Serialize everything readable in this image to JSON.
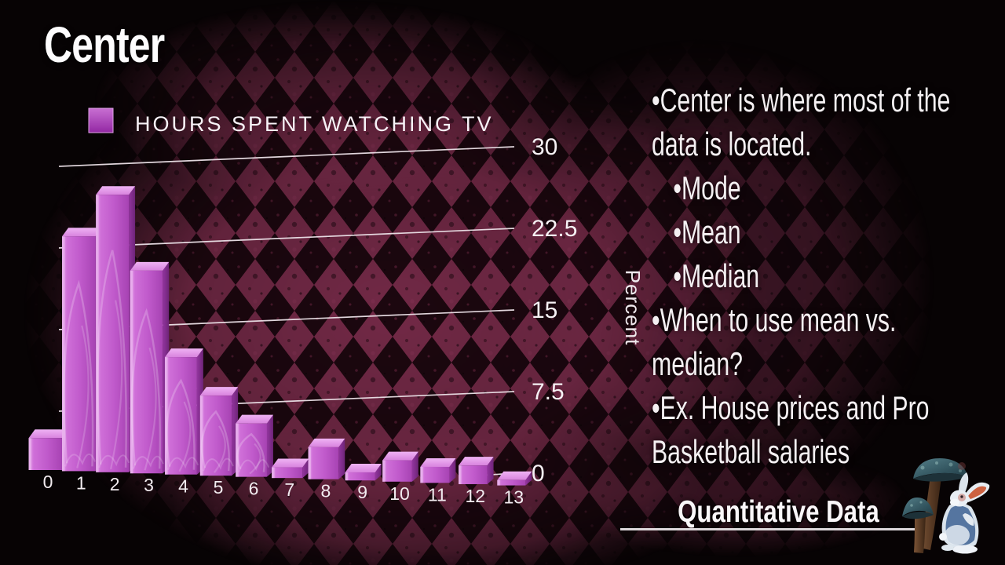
{
  "slide": {
    "title": "Center",
    "footer_label": "Quantitative Data",
    "bullet_char": "•",
    "bullet_lines": [
      {
        "indent": 0,
        "marker": true,
        "text": "Center is where most of the"
      },
      {
        "indent": 0,
        "marker": false,
        "text": "data is located."
      },
      {
        "indent": 1,
        "marker": true,
        "text": "Mode"
      },
      {
        "indent": 1,
        "marker": true,
        "text": "Mean"
      },
      {
        "indent": 1,
        "marker": true,
        "text": "Median"
      },
      {
        "indent": 0,
        "marker": true,
        "text": "When to use mean vs."
      },
      {
        "indent": 0,
        "marker": false,
        "text": "median?"
      },
      {
        "indent": 0,
        "marker": true,
        "text": "Ex. House prices and Pro"
      },
      {
        "indent": 0,
        "marker": false,
        "text": "Basketball salaries"
      }
    ]
  },
  "chart_data": {
    "type": "bar",
    "style": "3d-bars",
    "title": "",
    "legend_label": "HOURS SPENT WATCHING TV",
    "legend_position": "top-left",
    "xlabel": "",
    "ylabel": "Percent",
    "categories": [
      "0",
      "1",
      "2",
      "3",
      "4",
      "5",
      "6",
      "7",
      "8",
      "9",
      "10",
      "11",
      "12",
      "13"
    ],
    "values": [
      3,
      22,
      26,
      19,
      11,
      7.5,
      5,
      1,
      3,
      0.75,
      2,
      1.5,
      1.75,
      0.5
    ],
    "yticks": [
      0,
      7.5,
      15,
      22.5,
      30
    ],
    "ytick_labels": [
      "0",
      "7.5",
      "15",
      "22.5",
      "30"
    ],
    "ylim": [
      0,
      30
    ],
    "grid": true,
    "bar_color": "#c25ccd"
  },
  "decor": {
    "illustration": "white rabbit with mushrooms"
  }
}
